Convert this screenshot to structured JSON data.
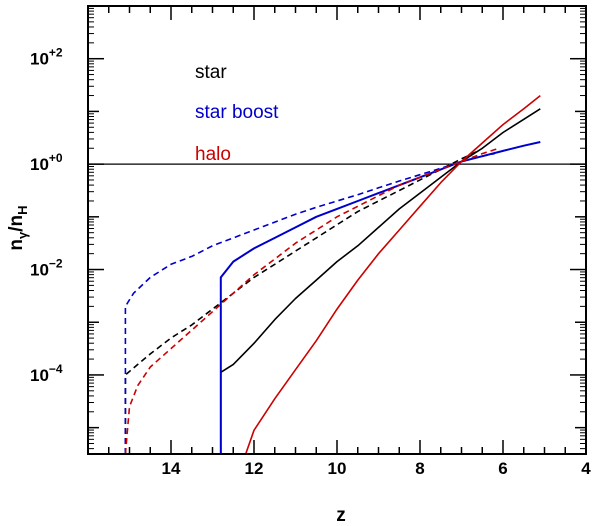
{
  "chart_data": {
    "type": "line",
    "title": "",
    "xlabel": "z",
    "ylabel_main": "n",
    "ylabel_sub1": "γ",
    "ylabel_slash": "/n",
    "ylabel_sub2": "H",
    "xlim": [
      16,
      4
    ],
    "ylim_log10": [
      -5.5,
      3
    ],
    "x_ticks": [
      {
        "value": 14,
        "label": "14"
      },
      {
        "value": 12,
        "label": "12"
      },
      {
        "value": 10,
        "label": "10"
      },
      {
        "value": 8,
        "label": "8"
      },
      {
        "value": 6,
        "label": "6"
      },
      {
        "value": 4,
        "label": "4"
      }
    ],
    "y_ticks": [
      {
        "exp": 2,
        "base": "10",
        "sup": "+2"
      },
      {
        "exp": 0,
        "base": "10",
        "sup": "+0"
      },
      {
        "exp": -2,
        "base": "10",
        "sup": "−2"
      },
      {
        "exp": -4,
        "base": "10",
        "sup": "−4"
      }
    ],
    "reference_line_log10": 0,
    "legend": [
      {
        "label": "star",
        "color": "#000000"
      },
      {
        "label": "star boost",
        "color": "#0000cc"
      },
      {
        "label": "halo",
        "color": "#cc0000"
      }
    ],
    "series": [
      {
        "series": "star",
        "style": "solid",
        "color": "#000000",
        "points": [
          [
            12.8,
            -5.5
          ],
          [
            12.8,
            -3.95
          ],
          [
            12.5,
            -3.8
          ],
          [
            12,
            -3.4
          ],
          [
            11.5,
            -2.95
          ],
          [
            11,
            -2.55
          ],
          [
            10.5,
            -2.2
          ],
          [
            10,
            -1.85
          ],
          [
            9.5,
            -1.55
          ],
          [
            9,
            -1.2
          ],
          [
            8.5,
            -0.85
          ],
          [
            8,
            -0.55
          ],
          [
            7.5,
            -0.25
          ],
          [
            7,
            0.05
          ],
          [
            6.5,
            0.3
          ],
          [
            6,
            0.6
          ],
          [
            5.5,
            0.85
          ],
          [
            5.1,
            1.05
          ]
        ]
      },
      {
        "series": "star",
        "style": "dashed",
        "color": "#000000",
        "points": [
          [
            15.1,
            -5.5
          ],
          [
            15.1,
            -4.0
          ],
          [
            14.8,
            -3.8
          ],
          [
            14.5,
            -3.6
          ],
          [
            14,
            -3.3
          ],
          [
            13.5,
            -3.05
          ],
          [
            13,
            -2.75
          ],
          [
            12.5,
            -2.45
          ],
          [
            12,
            -2.15
          ],
          [
            11.5,
            -1.9
          ],
          [
            11,
            -1.65
          ],
          [
            10.5,
            -1.4
          ],
          [
            10,
            -1.15
          ],
          [
            9.5,
            -0.9
          ],
          [
            9,
            -0.7
          ],
          [
            8.5,
            -0.5
          ],
          [
            8,
            -0.3
          ],
          [
            7.5,
            -0.1
          ],
          [
            7,
            0.1
          ],
          [
            6.6,
            0.25
          ]
        ]
      },
      {
        "series": "star boost",
        "style": "solid",
        "color": "#0000cc",
        "points": [
          [
            12.8,
            -5.5
          ],
          [
            12.8,
            -2.15
          ],
          [
            12.5,
            -1.85
          ],
          [
            12,
            -1.6
          ],
          [
            11.5,
            -1.4
          ],
          [
            11,
            -1.2
          ],
          [
            10.5,
            -1.0
          ],
          [
            10,
            -0.85
          ],
          [
            9.5,
            -0.7
          ],
          [
            9,
            -0.55
          ],
          [
            8.5,
            -0.4
          ],
          [
            8,
            -0.25
          ],
          [
            7.5,
            -0.1
          ],
          [
            7,
            0.05
          ],
          [
            6.5,
            0.15
          ],
          [
            6,
            0.25
          ],
          [
            5.5,
            0.35
          ],
          [
            5.1,
            0.42
          ]
        ]
      },
      {
        "series": "star boost",
        "style": "dashed",
        "color": "#0000cc",
        "points": [
          [
            15.1,
            -5.5
          ],
          [
            15.1,
            -2.7
          ],
          [
            14.9,
            -2.45
          ],
          [
            14.5,
            -2.15
          ],
          [
            14,
            -1.9
          ],
          [
            13.5,
            -1.75
          ],
          [
            13,
            -1.55
          ],
          [
            12.5,
            -1.4
          ],
          [
            12,
            -1.25
          ],
          [
            11.5,
            -1.1
          ],
          [
            11,
            -0.95
          ],
          [
            10.5,
            -0.82
          ],
          [
            10,
            -0.7
          ],
          [
            9.5,
            -0.58
          ],
          [
            9,
            -0.45
          ],
          [
            8.5,
            -0.32
          ],
          [
            8,
            -0.2
          ],
          [
            7.5,
            -0.08
          ],
          [
            7,
            0.05
          ],
          [
            6.5,
            0.15
          ],
          [
            6.2,
            0.2
          ]
        ]
      },
      {
        "series": "halo",
        "style": "solid",
        "color": "#cc0000",
        "points": [
          [
            12.2,
            -5.5
          ],
          [
            12,
            -5.05
          ],
          [
            11.5,
            -4.45
          ],
          [
            11,
            -3.9
          ],
          [
            10.5,
            -3.35
          ],
          [
            10,
            -2.75
          ],
          [
            9.5,
            -2.2
          ],
          [
            9,
            -1.7
          ],
          [
            8.5,
            -1.25
          ],
          [
            8,
            -0.8
          ],
          [
            7.5,
            -0.35
          ],
          [
            7,
            0.05
          ],
          [
            6.5,
            0.4
          ],
          [
            6,
            0.75
          ],
          [
            5.5,
            1.05
          ],
          [
            5.1,
            1.3
          ]
        ]
      },
      {
        "series": "halo",
        "style": "dashed",
        "color": "#cc0000",
        "points": [
          [
            15.1,
            -5.5
          ],
          [
            15.0,
            -4.6
          ],
          [
            14.8,
            -4.2
          ],
          [
            14.5,
            -3.85
          ],
          [
            14,
            -3.5
          ],
          [
            13.5,
            -3.15
          ],
          [
            13,
            -2.8
          ],
          [
            12.5,
            -2.45
          ],
          [
            12,
            -2.1
          ],
          [
            11.5,
            -1.8
          ],
          [
            11,
            -1.5
          ],
          [
            10.5,
            -1.25
          ],
          [
            10,
            -1.0
          ],
          [
            9.5,
            -0.8
          ],
          [
            9,
            -0.6
          ],
          [
            8.5,
            -0.4
          ],
          [
            8,
            -0.25
          ],
          [
            7.5,
            -0.1
          ],
          [
            7,
            0.05
          ],
          [
            6.5,
            0.2
          ],
          [
            6.1,
            0.3
          ]
        ]
      }
    ]
  }
}
